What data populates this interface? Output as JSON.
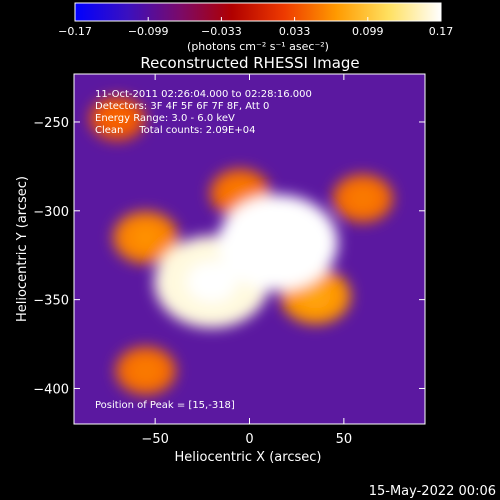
{
  "colorbar": {
    "ticks": [
      "-0.17",
      "-0.099",
      "-0.033",
      "0.033",
      "0.099",
      "0.17"
    ],
    "unit_label": "(photons cm⁻² s⁻¹ asec⁻²)",
    "range": [
      -0.17,
      0.17
    ],
    "colormap": [
      "#0000ff",
      "#3a10c0",
      "#7a0a6a",
      "#b00000",
      "#ee3a00",
      "#ff9a00",
      "#ffe060",
      "#ffffff"
    ]
  },
  "chart_data": {
    "type": "heatmap",
    "title": "Reconstructed RHESSI Image",
    "xlabel": "Heliocentric X (arcsec)",
    "ylabel": "Heliocentric Y (arcsec)",
    "xlim": [
      -93,
      93
    ],
    "ylim": [
      -420,
      -223
    ],
    "x_ticks": [
      -50,
      0,
      50
    ],
    "y_ticks": [
      -250,
      -300,
      -350,
      -400
    ],
    "value_range": [
      -0.17,
      0.17
    ],
    "peaks": [
      {
        "x": 15,
        "y": -318,
        "value": 0.17
      },
      {
        "x": -20,
        "y": -340,
        "value": 0.16
      },
      {
        "x": -55,
        "y": -315,
        "value": 0.06
      },
      {
        "x": -5,
        "y": -290,
        "value": 0.05
      },
      {
        "x": 35,
        "y": -348,
        "value": 0.07
      },
      {
        "x": 60,
        "y": -293,
        "value": 0.05
      },
      {
        "x": -70,
        "y": -248,
        "value": 0.04
      },
      {
        "x": -55,
        "y": -390,
        "value": 0.05
      }
    ],
    "annotations": [
      "11-Oct-2011 02:26:04.000 to 02:28:16.000",
      "Detectors: 3F 4F 5F 6F 7F 8F, Att 0",
      "Energy Range: 3.0 - 6.0 keV",
      "Clean     Total counts: 2.09E+04"
    ],
    "peak_label": "Position of Peak = [15,-318]"
  },
  "footer": {
    "date": "15-May-2022 00:06"
  }
}
